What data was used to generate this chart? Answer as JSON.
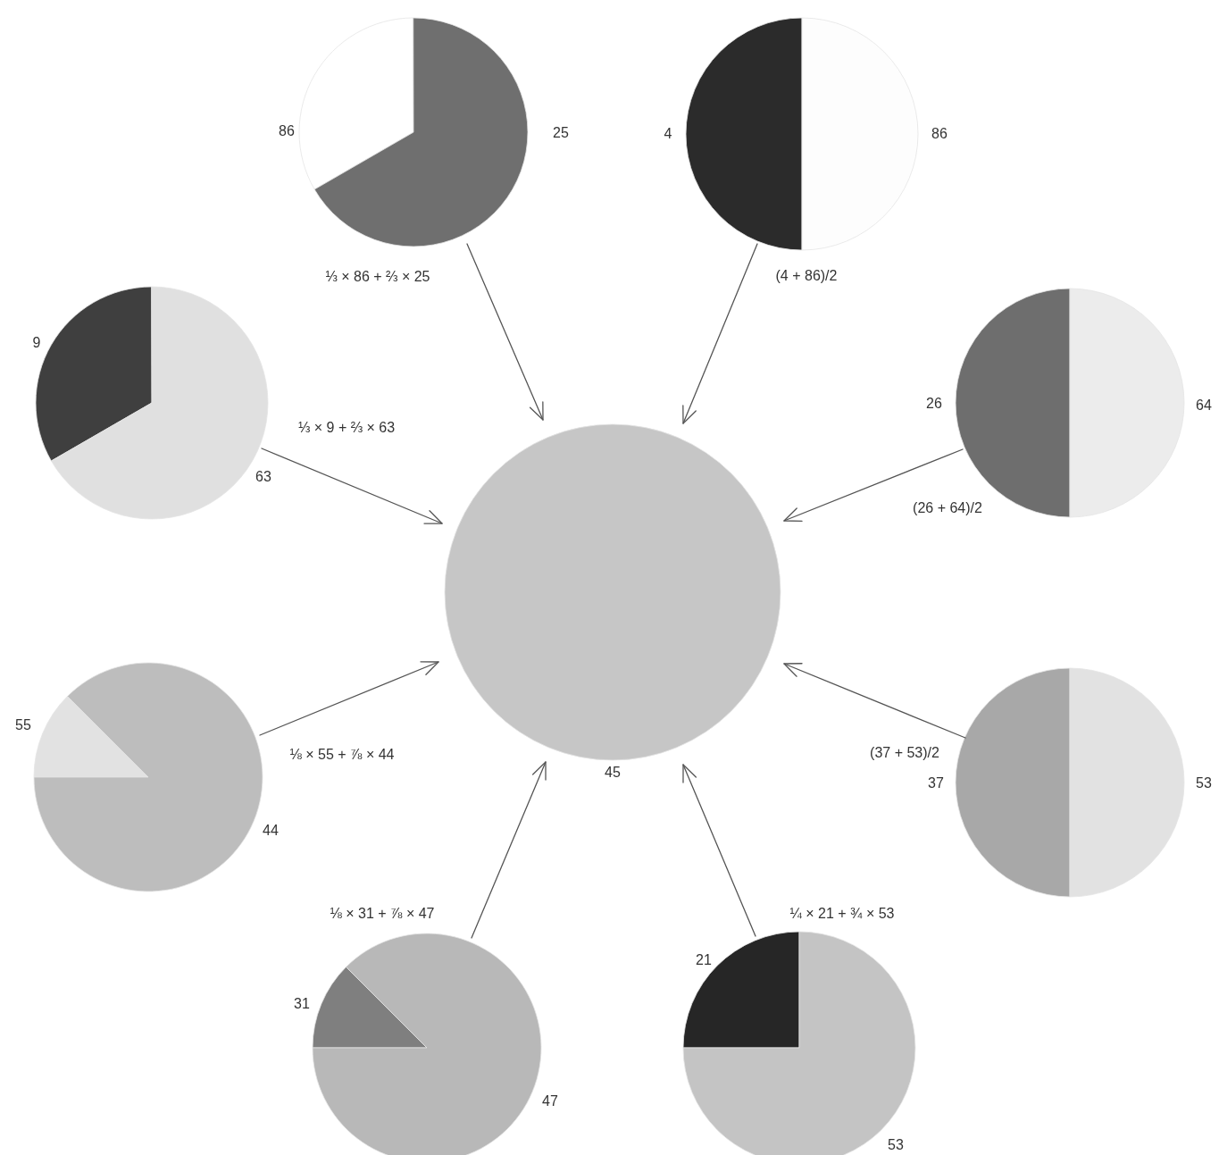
{
  "chart_data": [
    {
      "type": "pie",
      "categories": [
        "86",
        "25"
      ],
      "values": [
        33.3,
        66.7
      ],
      "colors": [
        "#ffffff",
        "#6f6f6f"
      ],
      "annotations": [
        "⅓ × 86 + ⅔ × 25"
      ]
    },
    {
      "type": "pie",
      "categories": [
        "4",
        "86"
      ],
      "values": [
        50,
        50
      ],
      "colors": [
        "#2b2b2b",
        "#fdfdfd"
      ],
      "annotations": [
        "(4 + 86)/2"
      ]
    },
    {
      "type": "pie",
      "categories": [
        "9",
        "63"
      ],
      "values": [
        33.3,
        66.7
      ],
      "colors": [
        "#3f3f3f",
        "#e0e0e0"
      ],
      "annotations": [
        "⅓ × 9 + ⅔ × 63"
      ]
    },
    {
      "type": "pie",
      "categories": [
        "26",
        "64"
      ],
      "values": [
        50,
        50
      ],
      "colors": [
        "#6e6e6e",
        "#ececec"
      ],
      "annotations": [
        "(26 + 64)/2"
      ]
    },
    {
      "type": "pie",
      "categories": [
        "55",
        "44"
      ],
      "values": [
        12.5,
        87.5
      ],
      "colors": [
        "#e2e2e2",
        "#bdbdbd"
      ],
      "annotations": [
        "⅛ × 55 + ⅞ × 44"
      ]
    },
    {
      "type": "pie",
      "categories": [
        "37",
        "53"
      ],
      "values": [
        50,
        50
      ],
      "colors": [
        "#a8a8a8",
        "#e2e2e2"
      ],
      "annotations": [
        "(37 + 53)/2"
      ]
    },
    {
      "type": "pie",
      "categories": [
        "31",
        "47"
      ],
      "values": [
        12.5,
        87.5
      ],
      "colors": [
        "#7f7f7f",
        "#b8b8b8"
      ],
      "annotations": [
        "⅛ × 31 + ⅞ × 47"
      ]
    },
    {
      "type": "pie",
      "categories": [
        "21",
        "53"
      ],
      "values": [
        25,
        75
      ],
      "colors": [
        "#262626",
        "#c4c4c4"
      ],
      "annotations": [
        "¼ × 21 + ¾ × 53"
      ]
    },
    {
      "type": "pie",
      "categories": [
        "45"
      ],
      "values": [
        100
      ],
      "colors": [
        "#c6c6c6"
      ]
    }
  ]
}
